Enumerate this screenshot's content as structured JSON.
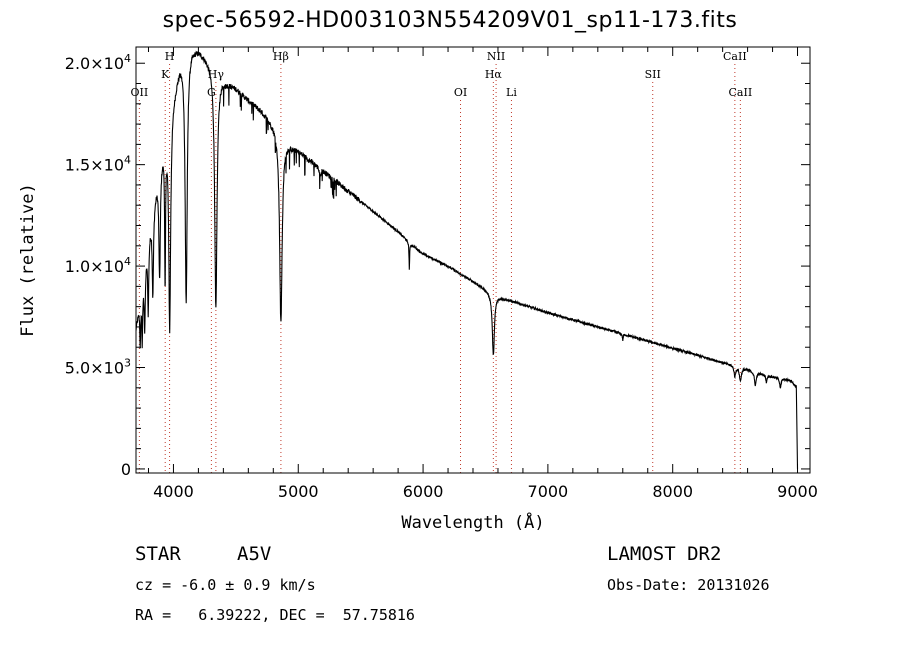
{
  "title": "spec-56592-HD003103N554209V01_sp11-173.fits",
  "info": {
    "class_label": "STAR",
    "subclass": "A5V",
    "survey": "LAMOST DR2",
    "cz": "cz = -6.0 ± 0.9 km/s",
    "obs_date": "Obs-Date: 20131026",
    "radec": "RA =   6.39222, DEC =  57.75816"
  },
  "chart_data": {
    "type": "line",
    "title": "spec-56592-HD003103N554209V01_sp11-173.fits",
    "xlabel": "Wavelength (Å)",
    "ylabel": "Flux (relative)",
    "xlim": [
      3700,
      9100
    ],
    "ylim": [
      -200,
      20800
    ],
    "x_ticks": [
      4000,
      5000,
      6000,
      7000,
      8000,
      9000
    ],
    "y_ticks": [
      {
        "value": 0,
        "label": "0"
      },
      {
        "value": 5000,
        "label": "5.0×10³"
      },
      {
        "value": 10000,
        "label": "1.0×10⁴"
      },
      {
        "value": 15000,
        "label": "1.5×10⁴"
      },
      {
        "value": 20000,
        "label": "2.0×10⁴"
      }
    ],
    "continuum": [
      [
        3700,
        7000
      ],
      [
        3750,
        9000
      ],
      [
        3800,
        11500
      ],
      [
        3850,
        13500
      ],
      [
        3900,
        15500
      ],
      [
        3950,
        16800
      ],
      [
        4000,
        18500
      ],
      [
        4050,
        20000
      ],
      [
        4100,
        20800
      ],
      [
        4150,
        20800
      ],
      [
        4200,
        20700
      ],
      [
        4250,
        20400
      ],
      [
        4300,
        20000
      ],
      [
        4350,
        19600
      ],
      [
        4400,
        19200
      ],
      [
        4500,
        18800
      ],
      [
        4600,
        18200
      ],
      [
        4700,
        17700
      ],
      [
        4800,
        17000
      ],
      [
        4850,
        16600
      ],
      [
        4900,
        16200
      ],
      [
        4950,
        15900
      ],
      [
        5000,
        15700
      ],
      [
        5100,
        15200
      ],
      [
        5200,
        14700
      ],
      [
        5300,
        14200
      ],
      [
        5400,
        13700
      ],
      [
        5500,
        13200
      ],
      [
        5600,
        12700
      ],
      [
        5700,
        12200
      ],
      [
        5800,
        11700
      ],
      [
        5900,
        11100
      ],
      [
        6000,
        10600
      ],
      [
        6100,
        10300
      ],
      [
        6200,
        10000
      ],
      [
        6300,
        9600
      ],
      [
        6400,
        9250
      ],
      [
        6500,
        8850
      ],
      [
        6560,
        8600
      ],
      [
        6600,
        8500
      ],
      [
        6700,
        8300
      ],
      [
        6800,
        8100
      ],
      [
        7000,
        7700
      ],
      [
        7200,
        7350
      ],
      [
        7400,
        7000
      ],
      [
        7600,
        6650
      ],
      [
        7800,
        6300
      ],
      [
        8000,
        5950
      ],
      [
        8200,
        5600
      ],
      [
        8400,
        5250
      ],
      [
        8600,
        4900
      ],
      [
        8800,
        4550
      ],
      [
        8950,
        4350
      ],
      [
        8980,
        4100
      ]
    ],
    "absorption_lines": [
      {
        "center": 3734,
        "depth": 2200,
        "width": 4
      },
      {
        "center": 3750,
        "depth": 2600,
        "width": 4
      },
      {
        "center": 3770,
        "depth": 3000,
        "width": 5
      },
      {
        "center": 3798,
        "depth": 3500,
        "width": 5
      },
      {
        "center": 3835,
        "depth": 4200,
        "width": 6
      },
      {
        "center": 3889,
        "depth": 5500,
        "width": 7
      },
      {
        "center": 3933,
        "depth": 7000,
        "width": 4
      },
      {
        "center": 3970,
        "depth": 10500,
        "width": 9
      },
      {
        "center": 4102,
        "depth": 12500,
        "width": 10
      },
      {
        "center": 4340,
        "depth": 11800,
        "width": 11
      },
      {
        "center": 4861,
        "depth": 9300,
        "width": 12
      },
      {
        "center": 5175,
        "depth": 400,
        "width": 6
      },
      {
        "center": 5890,
        "depth": 1300,
        "width": 3
      },
      {
        "center": 6563,
        "depth": 3000,
        "width": 10
      },
      {
        "center": 7600,
        "depth": 300,
        "width": 4
      },
      {
        "center": 8498,
        "depth": 500,
        "width": 8
      },
      {
        "center": 8542,
        "depth": 650,
        "width": 9
      },
      {
        "center": 8662,
        "depth": 650,
        "width": 9
      },
      {
        "center": 8750,
        "depth": 350,
        "width": 6
      },
      {
        "center": 8863,
        "depth": 450,
        "width": 7
      }
    ],
    "final_drop": [
      [
        8990,
        4100
      ],
      [
        9000,
        0
      ]
    ],
    "line_markers": [
      {
        "wavelength": 3727,
        "label": "OII",
        "position": "low"
      },
      {
        "wavelength": 3934,
        "label": "K",
        "position": "mid"
      },
      {
        "wavelength": 3969,
        "label": "H",
        "position": "high"
      },
      {
        "wavelength": 4304,
        "label": "G",
        "position": "low"
      },
      {
        "wavelength": 4340,
        "label": "Hγ",
        "position": "mid"
      },
      {
        "wavelength": 4861,
        "label": "Hβ",
        "position": "high"
      },
      {
        "wavelength": 6300,
        "label": "OI",
        "position": "low"
      },
      {
        "wavelength": 6563,
        "label": "Hα",
        "position": "mid"
      },
      {
        "wavelength": 6585,
        "label": "NII",
        "position": "high"
      },
      {
        "wavelength": 6708,
        "label": "Li",
        "position": "low"
      },
      {
        "wavelength": 7840,
        "label": "SII",
        "position": "mid"
      },
      {
        "wavelength": 8498,
        "label": "CaII",
        "position": "high"
      },
      {
        "wavelength": 8542,
        "label": "CaII",
        "position": "low"
      }
    ]
  }
}
